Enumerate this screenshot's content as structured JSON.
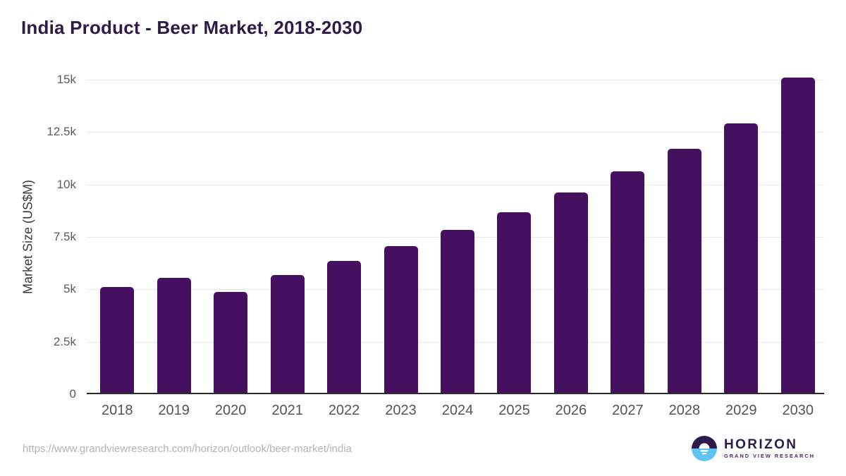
{
  "title": "India Product - Beer Market, 2018-2030",
  "chart_data": {
    "type": "bar",
    "categories": [
      "2018",
      "2019",
      "2020",
      "2021",
      "2022",
      "2023",
      "2024",
      "2025",
      "2026",
      "2027",
      "2028",
      "2029",
      "2030"
    ],
    "values": [
      5030,
      5470,
      4820,
      5620,
      6280,
      7000,
      7760,
      8610,
      9560,
      10550,
      11630,
      12850,
      15050
    ],
    "title": "India Product - Beer Market, 2018-2030",
    "xlabel": "",
    "ylabel": "Market Size (US$M)",
    "ylim": [
      0,
      15000
    ],
    "yticks": [
      {
        "value": 0,
        "label": "0"
      },
      {
        "value": 2500,
        "label": "2.5k"
      },
      {
        "value": 5000,
        "label": "5k"
      },
      {
        "value": 7500,
        "label": "7.5k"
      },
      {
        "value": 10000,
        "label": "10k"
      },
      {
        "value": 12500,
        "label": "12.5k"
      },
      {
        "value": 15000,
        "label": "15k"
      }
    ],
    "grid": true,
    "legend": "none",
    "bar_color": "#461061"
  },
  "colors": {
    "title": "#2e1a47",
    "bar": "#461061",
    "gridline": "#e9e9e9",
    "axis_line": "#2c2c2c",
    "tick_label": "#5c5c5c",
    "logo_purple": "#2d1b4e",
    "logo_blue": "#60c4f0",
    "url_gray": "#b4b4b4"
  },
  "footer": {
    "url": "https://www.grandviewresearch.com/horizon/outlook/beer-market/india",
    "logo": {
      "name": "HORIZON",
      "subtitle": "GRAND VIEW RESEARCH"
    }
  }
}
